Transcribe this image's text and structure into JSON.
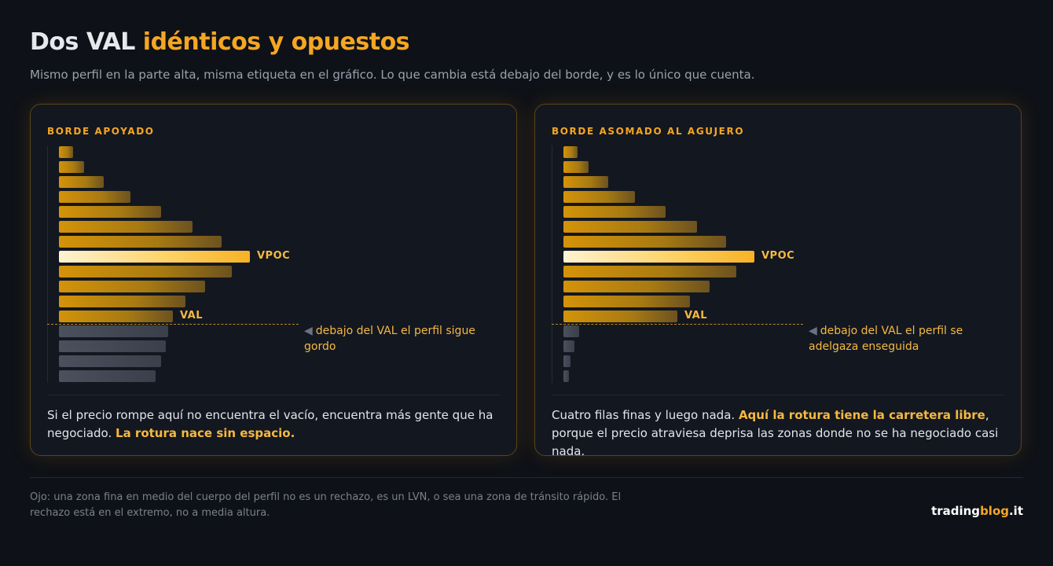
{
  "title": {
    "prefix": "Dos VAL",
    "highlight": "idénticos y opuestos"
  },
  "subtitle": "Mismo perfil en la parte alta, misma etiqueta en el gráfico. Lo que cambia está debajo del borde, y es lo único que cuenta.",
  "colors": {
    "accent": "#f5a623",
    "background": "#0e1117",
    "card": "#131720",
    "bar_above": "#c48a10",
    "bar_vpoc": "#ffe8a8",
    "bar_below": "#454b57"
  },
  "panels": [
    {
      "label": "BORDE APOYADO",
      "vpoc_label": "VPOC",
      "val_label": "VAL",
      "note_arrow": "◀",
      "note": "debajo del VAL el perfil sigue gordo",
      "body_plain": "Si el precio rompe aquí no encuentra el vacío, encuentra más gente que ha negociado.",
      "body_highlight": "La rotura nace sin espacio."
    },
    {
      "label": "BORDE ASOMADO AL AGUJERO",
      "vpoc_label": "VPOC",
      "val_label": "VAL",
      "note_arrow": "◀",
      "note": "debajo del VAL el perfil se adelgaza enseguida",
      "body_plain": "Cuatro filas finas y luego nada.",
      "body_highlight": "Aquí la rotura tiene la carretera libre",
      "body_tail": ", porque el precio atraviesa deprisa las zonas donde no se ha negociado casi nada."
    }
  ],
  "chart_data": [
    {
      "type": "bar",
      "orientation": "horizontal",
      "title": "BORDE APOYADO",
      "values": [
        8,
        14,
        25,
        40,
        57,
        75,
        91,
        107,
        97,
        82,
        71,
        64,
        61,
        60,
        57,
        54
      ],
      "vpoc_index": 7,
      "val_index": 11,
      "xlim": [
        0,
        110
      ],
      "annotations": [
        "VPOC",
        "VAL",
        "debajo del VAL el perfil sigue gordo"
      ]
    },
    {
      "type": "bar",
      "orientation": "horizontal",
      "title": "BORDE ASOMADO AL AGUJERO",
      "values": [
        8,
        14,
        25,
        40,
        57,
        75,
        91,
        107,
        97,
        82,
        71,
        64,
        9,
        6,
        4,
        3
      ],
      "vpoc_index": 7,
      "val_index": 11,
      "xlim": [
        0,
        110
      ],
      "annotations": [
        "VPOC",
        "VAL",
        "debajo del VAL el perfil se adelgaza enseguida"
      ]
    }
  ],
  "footnote": "Ojo: una zona fina en medio del cuerpo del perfil no es un rechazo, es un LVN, o sea una zona de tránsito rápido. El rechazo está en el extremo, no a media altura.",
  "brand": {
    "prefix": "trading",
    "highlight": "blog",
    "suffix": ".it"
  }
}
